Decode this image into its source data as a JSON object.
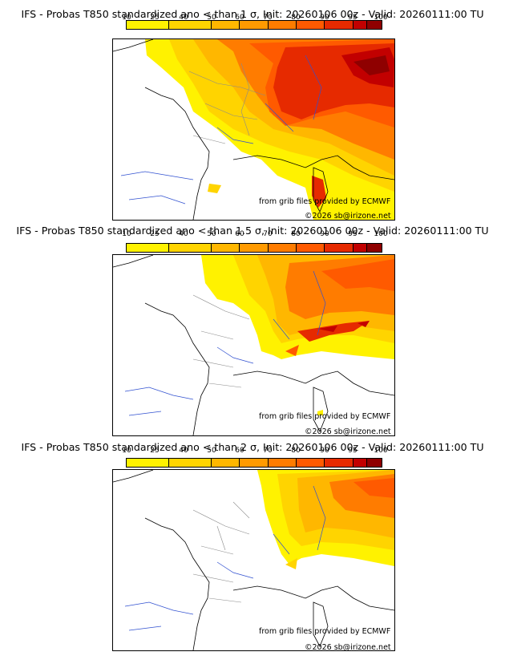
{
  "colorbar": {
    "ticks": [
      "10",
      "25",
      "40",
      "50",
      "60",
      "70",
      "80",
      "90",
      "95",
      "100"
    ],
    "colors": [
      "#fff200",
      "#ffd400",
      "#ffb700",
      "#ff9a00",
      "#ff7c00",
      "#ff5a00",
      "#e62a00",
      "#c20000",
      "#8f0000"
    ]
  },
  "panels": [
    {
      "title": "IFS - Probas T850  standardized ano < than 1 σ, Init: 20260106 00z - Valid: 20260111:00 TU",
      "source": "from grib files provided by ECMWF",
      "copyright": "©2026 sb@irizone.net"
    },
    {
      "title": "IFS - Probas T850  standardized ano < than 1.5 σ, Init: 20260106 00z - Valid: 20260111:00 TU",
      "source": "from grib files provided by ECMWF",
      "copyright": "©2026 sb@irizone.net"
    },
    {
      "title": "IFS - Probas T850  standardized ano < than 2 σ, Init: 20260106 00z - Valid: 20260111:00 TU",
      "source": "from grib files provided by ECMWF",
      "copyright": "©2026 sb@irizone.net"
    }
  ]
}
